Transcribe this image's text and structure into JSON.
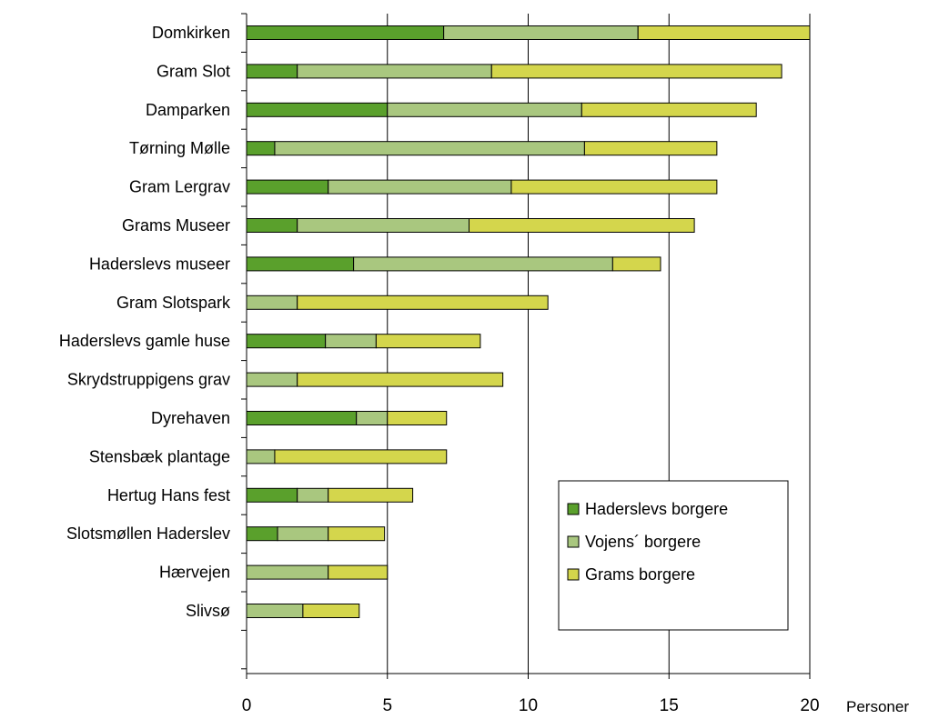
{
  "chart_data": {
    "type": "bar",
    "orientation": "horizontal",
    "stacked": true,
    "title": "",
    "xlabel": "Personer",
    "ylabel": "",
    "xlim": [
      0,
      20
    ],
    "x_ticks": [
      0,
      5,
      10,
      15,
      20
    ],
    "x_tick_labels": [
      "0",
      "5",
      "10",
      "15",
      "20"
    ],
    "grid": "vertical",
    "legend_position": "bottom-right",
    "categories": [
      "Domkirken",
      "Gram Slot",
      "Damparken",
      "Tørning Mølle",
      "Gram Lergrav",
      "Grams Museer",
      "Haderslevs museer",
      "Gram Slotspark",
      "Haderslevs gamle huse",
      "Skrydstruppigens grav",
      "Dyrehaven",
      "Stensbæk plantage",
      "Hertug Hans fest",
      "Slotsmøllen Haderslev",
      "Hærvejen",
      "Slivsø"
    ],
    "series": [
      {
        "name": "Haderslevs borgere",
        "color": "#5aa02c",
        "values": [
          7,
          1.8,
          5,
          1,
          2.9,
          1.8,
          3.8,
          0,
          2.8,
          0,
          3.9,
          0,
          1.8,
          1.1,
          0,
          0
        ]
      },
      {
        "name": "Vojens´ borgere",
        "color": "#a9c77f",
        "values": [
          6.9,
          6.9,
          6.9,
          11,
          6.5,
          6.1,
          9.2,
          1.8,
          1.8,
          1.8,
          1.1,
          1,
          1.1,
          1.8,
          2.9,
          2
        ]
      },
      {
        "name": "Grams borgere",
        "color": "#d4d64c",
        "values": [
          6.1,
          10.3,
          6.2,
          4.7,
          7.3,
          8,
          1.7,
          8.9,
          3.7,
          7.3,
          2.1,
          6.1,
          3,
          2,
          2.1,
          2
        ]
      }
    ]
  }
}
